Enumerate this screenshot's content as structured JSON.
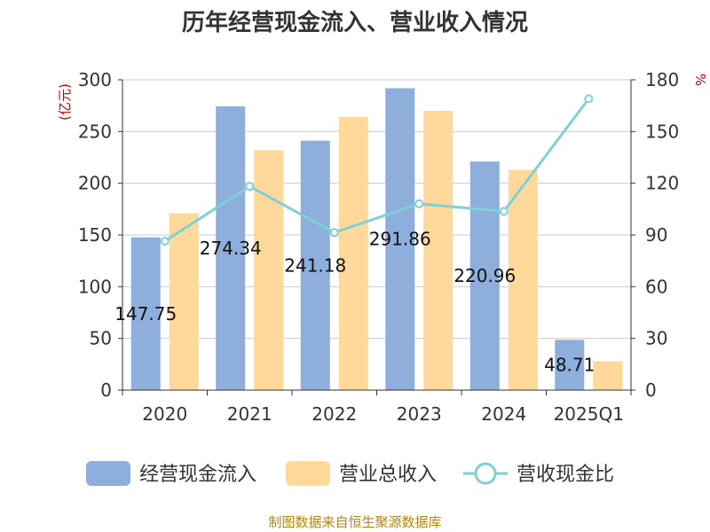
{
  "chart_data": {
    "type": "bar",
    "title": "历年经营现金流入、营业收入情况",
    "left_axis_unit": "(亿元)",
    "right_axis_unit": "%",
    "categories": [
      "2020",
      "2021",
      "2022",
      "2023",
      "2024",
      "2025Q1"
    ],
    "y_left": {
      "ticks": [
        "0",
        "50",
        "100",
        "150",
        "200",
        "250",
        "300"
      ],
      "ylim": [
        0,
        300
      ]
    },
    "y_right": {
      "ticks": [
        "0",
        "30",
        "60",
        "90",
        "120",
        "150",
        "180"
      ],
      "ylim": [
        0,
        180
      ]
    },
    "grid": true,
    "legend_position": "bottom",
    "series": [
      {
        "name": "经营现金流入",
        "type": "bar",
        "axis": "left",
        "color": "#8eaedc",
        "values": [
          147.75,
          274.34,
          241.18,
          291.86,
          220.96,
          48.71
        ],
        "labels": [
          "147.75",
          "274.34",
          "241.18",
          "291.86",
          "220.96",
          "48.71"
        ]
      },
      {
        "name": "营业总收入",
        "type": "bar",
        "axis": "left",
        "color": "#ffd89b",
        "values": [
          171,
          232,
          264,
          270,
          213,
          28
        ]
      },
      {
        "name": "营收现金比",
        "type": "line",
        "axis": "right",
        "color": "#7fd1d6",
        "values": [
          86.4,
          118.2,
          91.4,
          108.1,
          103.7,
          169.0
        ]
      }
    ]
  },
  "source_text": "制图数据来自恒生聚源数据库",
  "colors": {
    "grid": "#cccccc",
    "axis": "#333333",
    "unit": "#cc0000",
    "source": "#b8860b",
    "title": "#333333"
  }
}
